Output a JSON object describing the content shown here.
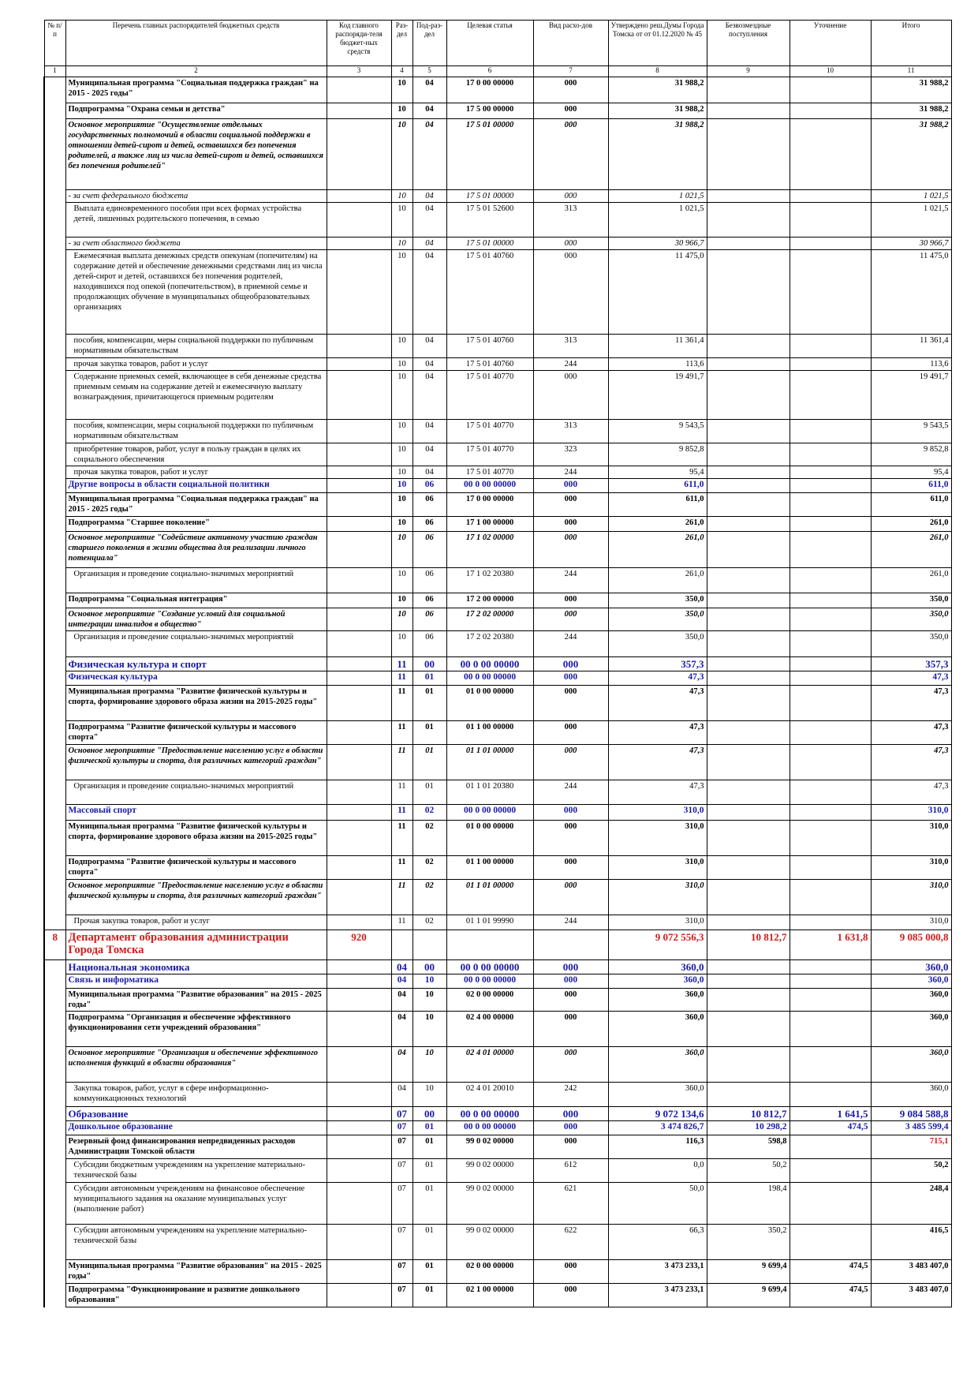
{
  "table": {
    "header": [
      "№ п/п",
      "Перечень главных распорядителей бюджетных средств",
      "Код главного распоряди-теля бюджет-ных средств",
      "Раз-дел",
      "Под-раз-дел",
      "Целевая статья",
      "Вид расхо-дов",
      "Утверждено реш.Думы Города Томска от от 01.12.2020 № 45",
      "Безвозмездные поступления",
      "Уточнение",
      "Итого"
    ],
    "column_numbers": [
      1,
      2,
      3,
      4,
      5,
      6,
      7,
      8,
      9,
      10,
      11
    ],
    "rows": [
      [
        null,
        "Муниципальная программа \"Социальная поддержка граждан\" на 2015 - 2025 годы\"",
        null,
        "10",
        "04",
        "17 0 00 00000",
        "000",
        "31 988,2",
        null,
        null,
        "31 988,2"
      ],
      [
        null,
        "Подпрограмма \"Охрана семьи и детства\"",
        null,
        "10",
        "04",
        "17 5 00 00000",
        "000",
        "31 988,2",
        null,
        null,
        "31 988,2"
      ],
      [
        null,
        "Основное мероприятие \"Осуществление отдельных государственных полномочий в области социальной поддержки в отношении детей-сирот и детей, оставшихся без попечения родителей, а также лиц из числа детей-сирот и детей, оставшихся без попечения родителей\"",
        null,
        "10",
        "04",
        "17 5 01 00000",
        "000",
        "31 988,2",
        null,
        null,
        "31 988,2"
      ],
      [
        null,
        "- за счет федерального бюджета",
        null,
        "10",
        "04",
        "17 5 01 00000",
        "000",
        "1 021,5",
        null,
        null,
        "1 021,5"
      ],
      [
        null,
        "Выплата единовременного пособия при всех формах устройства детей, лишенных родительского попечения, в семью",
        null,
        "10",
        "04",
        "17 5 01 52600",
        "313",
        "1 021,5",
        null,
        null,
        "1 021,5"
      ],
      [
        null,
        "- за счет областного бюджета",
        null,
        "10",
        "04",
        "17 5 01 00000",
        "000",
        "30 966,7",
        null,
        null,
        "30 966,7"
      ],
      [
        null,
        "Ежемесячная выплата денежных средств опекунам (попечителям) на содержание детей и обеспечение денежными средствами лиц из числа детей-сирот и детей, оставшихся без попечения родителей, находившихся под опекой (попечительством), в приемной семье и продолжающих обучение в муниципальных общеобразовательных организациях",
        null,
        "10",
        "04",
        "17 5 01 40760",
        "000",
        "11 475,0",
        null,
        null,
        "11 475,0"
      ],
      [
        null,
        "пособия, компенсации, меры социальной поддержки по публичным нормативным обязательствам",
        null,
        "10",
        "04",
        "17 5 01 40760",
        "313",
        "11 361,4",
        null,
        null,
        "11 361,4"
      ],
      [
        null,
        "прочая закупка товаров, работ и услуг",
        null,
        "10",
        "04",
        "17 5 01 40760",
        "244",
        "113,6",
        null,
        null,
        "113,6"
      ],
      [
        null,
        "Содержание приемных семей, включающее в себя денежные средства приемным семьям на содержание детей и ежемесячную выплату вознаграждения, причитающегося приемным родителям",
        null,
        "10",
        "04",
        "17 5 01 40770",
        "000",
        "19 491,7",
        null,
        null,
        "19 491,7"
      ],
      [
        null,
        "пособия, компенсации, меры социальной поддержки по публичным нормативным обязательствам",
        null,
        "10",
        "04",
        "17 5 01 40770",
        "313",
        "9 543,5",
        null,
        null,
        "9 543,5"
      ],
      [
        null,
        "приобретение товаров, работ, услуг в пользу граждан в целях их социального обеспечения",
        null,
        "10",
        "04",
        "17 5 01 40770",
        "323",
        "9 852,8",
        null,
        null,
        "9 852,8"
      ],
      [
        null,
        "прочая закупка товаров, работ и услуг",
        null,
        "10",
        "04",
        "17 5 01 40770",
        "244",
        "95,4",
        null,
        null,
        "95,4"
      ],
      [
        null,
        "Другие вопросы в области социальной политики",
        null,
        "10",
        "06",
        "00 0 00 00000",
        "000",
        "611,0",
        null,
        null,
        "611,0"
      ],
      [
        null,
        "Муниципальная программа \"Социальная поддержка граждан\" на 2015 - 2025 годы\"",
        null,
        "10",
        "06",
        "17 0 00 00000",
        "000",
        "611,0",
        null,
        null,
        "611,0"
      ],
      [
        null,
        "Подпрограмма \"Старшее поколение\"",
        null,
        "10",
        "06",
        "17 1 00 00000",
        "000",
        "261,0",
        null,
        null,
        "261,0"
      ],
      [
        null,
        "Основное мероприятие \"Содействие активному участию граждан старшего поколения в жизни общества для реализации личного потенциала\"",
        null,
        "10",
        "06",
        "17 1 02 00000",
        "000",
        "261,0",
        null,
        null,
        "261,0"
      ],
      [
        null,
        "Организация и проведение социально-значимых мероприятий",
        null,
        "10",
        "06",
        "17 1 02 20380",
        "244",
        "261,0",
        null,
        null,
        "261,0"
      ],
      [
        null,
        "Подпрограмма \"Социальная интеграция\"",
        null,
        "10",
        "06",
        "17 2 00 00000",
        "000",
        "350,0",
        null,
        null,
        "350,0"
      ],
      [
        null,
        "Основное мероприятие \"Создание условий для социальной интеграции инвалидов в общество\"",
        null,
        "10",
        "06",
        "17 2 02 00000",
        "000",
        "350,0",
        null,
        null,
        "350,0"
      ],
      [
        null,
        "Организация и проведение социально-значимых мероприятий",
        null,
        "10",
        "06",
        "17 2 02 20380",
        "244",
        "350,0",
        null,
        null,
        "350,0"
      ],
      [
        null,
        "Физическая культура и спорт",
        null,
        "11",
        "00",
        "00 0 00 00000",
        "000",
        "357,3",
        null,
        null,
        "357,3"
      ],
      [
        null,
        "Физическая культура",
        null,
        "11",
        "01",
        "00 0 00 00000",
        "000",
        "47,3",
        null,
        null,
        "47,3"
      ],
      [
        null,
        "Муниципальная программа \"Развитие физической культуры и спорта, формирование здорового образа жизни на 2015-2025 годы\"",
        null,
        "11",
        "01",
        "01 0 00 00000",
        "000",
        "47,3",
        null,
        null,
        "47,3"
      ],
      [
        null,
        "Подпрограмма \"Развитие физической культуры и массового спорта\"",
        null,
        "11",
        "01",
        "01 1 00 00000",
        "000",
        "47,3",
        null,
        null,
        "47,3"
      ],
      [
        null,
        "Основное мероприятие \"Предоставление населению услуг в области физической культуры и спорта, для различных категорий граждан\"",
        null,
        "11",
        "01",
        "01 1 01 00000",
        "000",
        "47,3",
        null,
        null,
        "47,3"
      ],
      [
        null,
        "Организация и проведение социально-значимых мероприятий",
        null,
        "11",
        "01",
        "01 1 01 20380",
        "244",
        "47,3",
        null,
        null,
        "47,3"
      ],
      [
        null,
        "Массовый спорт",
        null,
        "11",
        "02",
        "00 0 00 00000",
        "000",
        "310,0",
        null,
        null,
        "310,0"
      ],
      [
        null,
        "Муниципальная программа \"Развитие физической культуры и спорта, формирование здорового образа жизни на 2015-2025 годы\"",
        null,
        "11",
        "02",
        "01 0 00 00000",
        "000",
        "310,0",
        null,
        null,
        "310,0"
      ],
      [
        null,
        "Подпрограмма \"Развитие физической культуры и массового спорта\"",
        null,
        "11",
        "02",
        "01 1 00 00000",
        "000",
        "310,0",
        null,
        null,
        "310,0"
      ],
      [
        null,
        "Основное мероприятие \"Предоставление населению услуг в области физической культуры и спорта, для различных категорий граждан\"",
        null,
        "11",
        "02",
        "01 1 01 00000",
        "000",
        "310,0",
        null,
        null,
        "310,0"
      ],
      [
        null,
        "Прочая закупка товаров, работ и услуг",
        null,
        "11",
        "02",
        "01 1 01 99990",
        "244",
        "310,0",
        null,
        null,
        "310,0"
      ],
      [
        "8",
        "Департамент образования администрации Города Томска",
        "920",
        null,
        null,
        null,
        null,
        "9 072 556,3",
        "10 812,7",
        "1 631,8",
        "9 085 000,8"
      ],
      [
        null,
        "Национальная экономика",
        null,
        "04",
        "00",
        "00 0 00 00000",
        "000",
        "360,0",
        null,
        null,
        "360,0"
      ],
      [
        null,
        "Связь и информатика",
        null,
        "04",
        "10",
        "00 0 00 00000",
        "000",
        "360,0",
        null,
        null,
        "360,0"
      ],
      [
        null,
        "Муниципальная программа \"Развитие образования\" на 2015 - 2025 годы\"",
        null,
        "04",
        "10",
        "02 0 00 00000",
        "000",
        "360,0",
        null,
        null,
        "360,0"
      ],
      [
        null,
        "Подпрограмма \"Организация и обеспечение эффективного функционирования сети учреждений образования\"",
        null,
        "04",
        "10",
        "02 4 00 00000",
        "000",
        "360,0",
        null,
        null,
        "360,0"
      ],
      [
        null,
        "Основное мероприятие \"Организация и обеспечение эффективного исполнения функций в области образования\"",
        null,
        "04",
        "10",
        "02 4 01 00000",
        "000",
        "360,0",
        null,
        null,
        "360,0"
      ],
      [
        null,
        "Закупка товаров, работ, услуг в сфере информационно-коммуникационных технологий",
        null,
        "04",
        "10",
        "02 4 01 20010",
        "242",
        "360,0",
        null,
        null,
        "360,0"
      ],
      [
        null,
        "Образование",
        null,
        "07",
        "00",
        "00 0 00 00000",
        "000",
        "9 072 134,6",
        "10 812,7",
        "1 641,5",
        "9 084 588,8"
      ],
      [
        null,
        "Дошкольное образование",
        null,
        "07",
        "01",
        "00 0 00 00000",
        "000",
        "3 474 826,7",
        "10 298,2",
        "474,5",
        "3 485 599,4"
      ],
      [
        null,
        "Резервный фонд финансирования непредвиденных расходов Администрации Томской области",
        null,
        "07",
        "01",
        "99 0 02 00000",
        "000",
        "116,3",
        "598,8",
        null,
        "715,1"
      ],
      [
        null,
        "Субсидии бюджетным учреждениям на укрепление материально-технической базы",
        null,
        "07",
        "01",
        "99 0 02 00000",
        "612",
        "0,0",
        "50,2",
        null,
        "50,2"
      ],
      [
        null,
        "Субсидии автономным учреждениям на финансовое обеспечение муниципального задания на оказание муниципальных услуг (выполнение работ)",
        null,
        "07",
        "01",
        "99 0 02 00000",
        "621",
        "50,0",
        "198,4",
        null,
        "248,4"
      ],
      [
        null,
        "Субсидии автономным учреждениям на укрепление материально-технической базы",
        null,
        "07",
        "01",
        "99 0 02 00000",
        "622",
        "66,3",
        "350,2",
        null,
        "416,5"
      ],
      [
        null,
        "Муниципальная программа \"Развитие образования\" на 2015 - 2025 годы\"",
        null,
        "07",
        "01",
        "02 0 00 00000",
        "000",
        "3 473 233,1",
        "9 699,4",
        "474,5",
        "3 483 407,0"
      ],
      [
        null,
        "Подпрограмма \"Функционирование и развитие дошкольного образования\"",
        null,
        "07",
        "01",
        "02 1 00 00000",
        "000",
        "3 473 233,1",
        "9 699,4",
        "474,5",
        "3 483 407,0"
      ]
    ]
  }
}
